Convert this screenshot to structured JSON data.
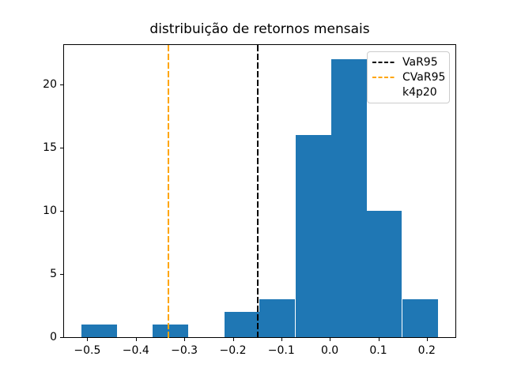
{
  "figure": {
    "background": "#ffffff",
    "title": "distribuição de retornos mensais"
  },
  "chart_data": {
    "type": "bar",
    "subtype": "histogram",
    "title": "distribuição de retornos mensais",
    "xlabel": "",
    "ylabel": "",
    "bar_color": "#1f77b4",
    "grid": false,
    "xlim": [
      -0.548,
      0.259
    ],
    "ylim": [
      0,
      23.1
    ],
    "bin_edges": [
      -0.5114,
      -0.438,
      -0.3647,
      -0.2913,
      -0.2179,
      -0.1446,
      -0.0712,
      0.0022,
      0.0755,
      0.1489,
      0.2223
    ],
    "counts": [
      1,
      0,
      1,
      0,
      2,
      3,
      16,
      22,
      10,
      3
    ],
    "xticks": {
      "values": [
        -0.5,
        -0.4,
        -0.3,
        -0.2,
        -0.1,
        0.0,
        0.1,
        0.2
      ],
      "labels": [
        "−0.5",
        "−0.4",
        "−0.3",
        "−0.2",
        "−0.1",
        "0.0",
        "0.1",
        "0.2"
      ]
    },
    "yticks": {
      "values": [
        0,
        5,
        10,
        15,
        20
      ],
      "labels": [
        "0",
        "5",
        "10",
        "15",
        "20"
      ]
    },
    "vlines": [
      {
        "name": "VaR95",
        "x": -0.148,
        "color": "#000000",
        "style": "dashed"
      },
      {
        "name": "CVaR95",
        "x": -0.333,
        "color": "#ffa500",
        "style": "dashed"
      }
    ],
    "legend": {
      "position": "upper right",
      "entries": [
        {
          "label": "VaR95",
          "line_color": "#000000",
          "line_style": "dashed"
        },
        {
          "label": "CVaR95",
          "line_color": "#ffa500",
          "line_style": "dashed"
        },
        {
          "label": "k4p20",
          "line_color": null,
          "line_style": "none"
        }
      ]
    }
  }
}
